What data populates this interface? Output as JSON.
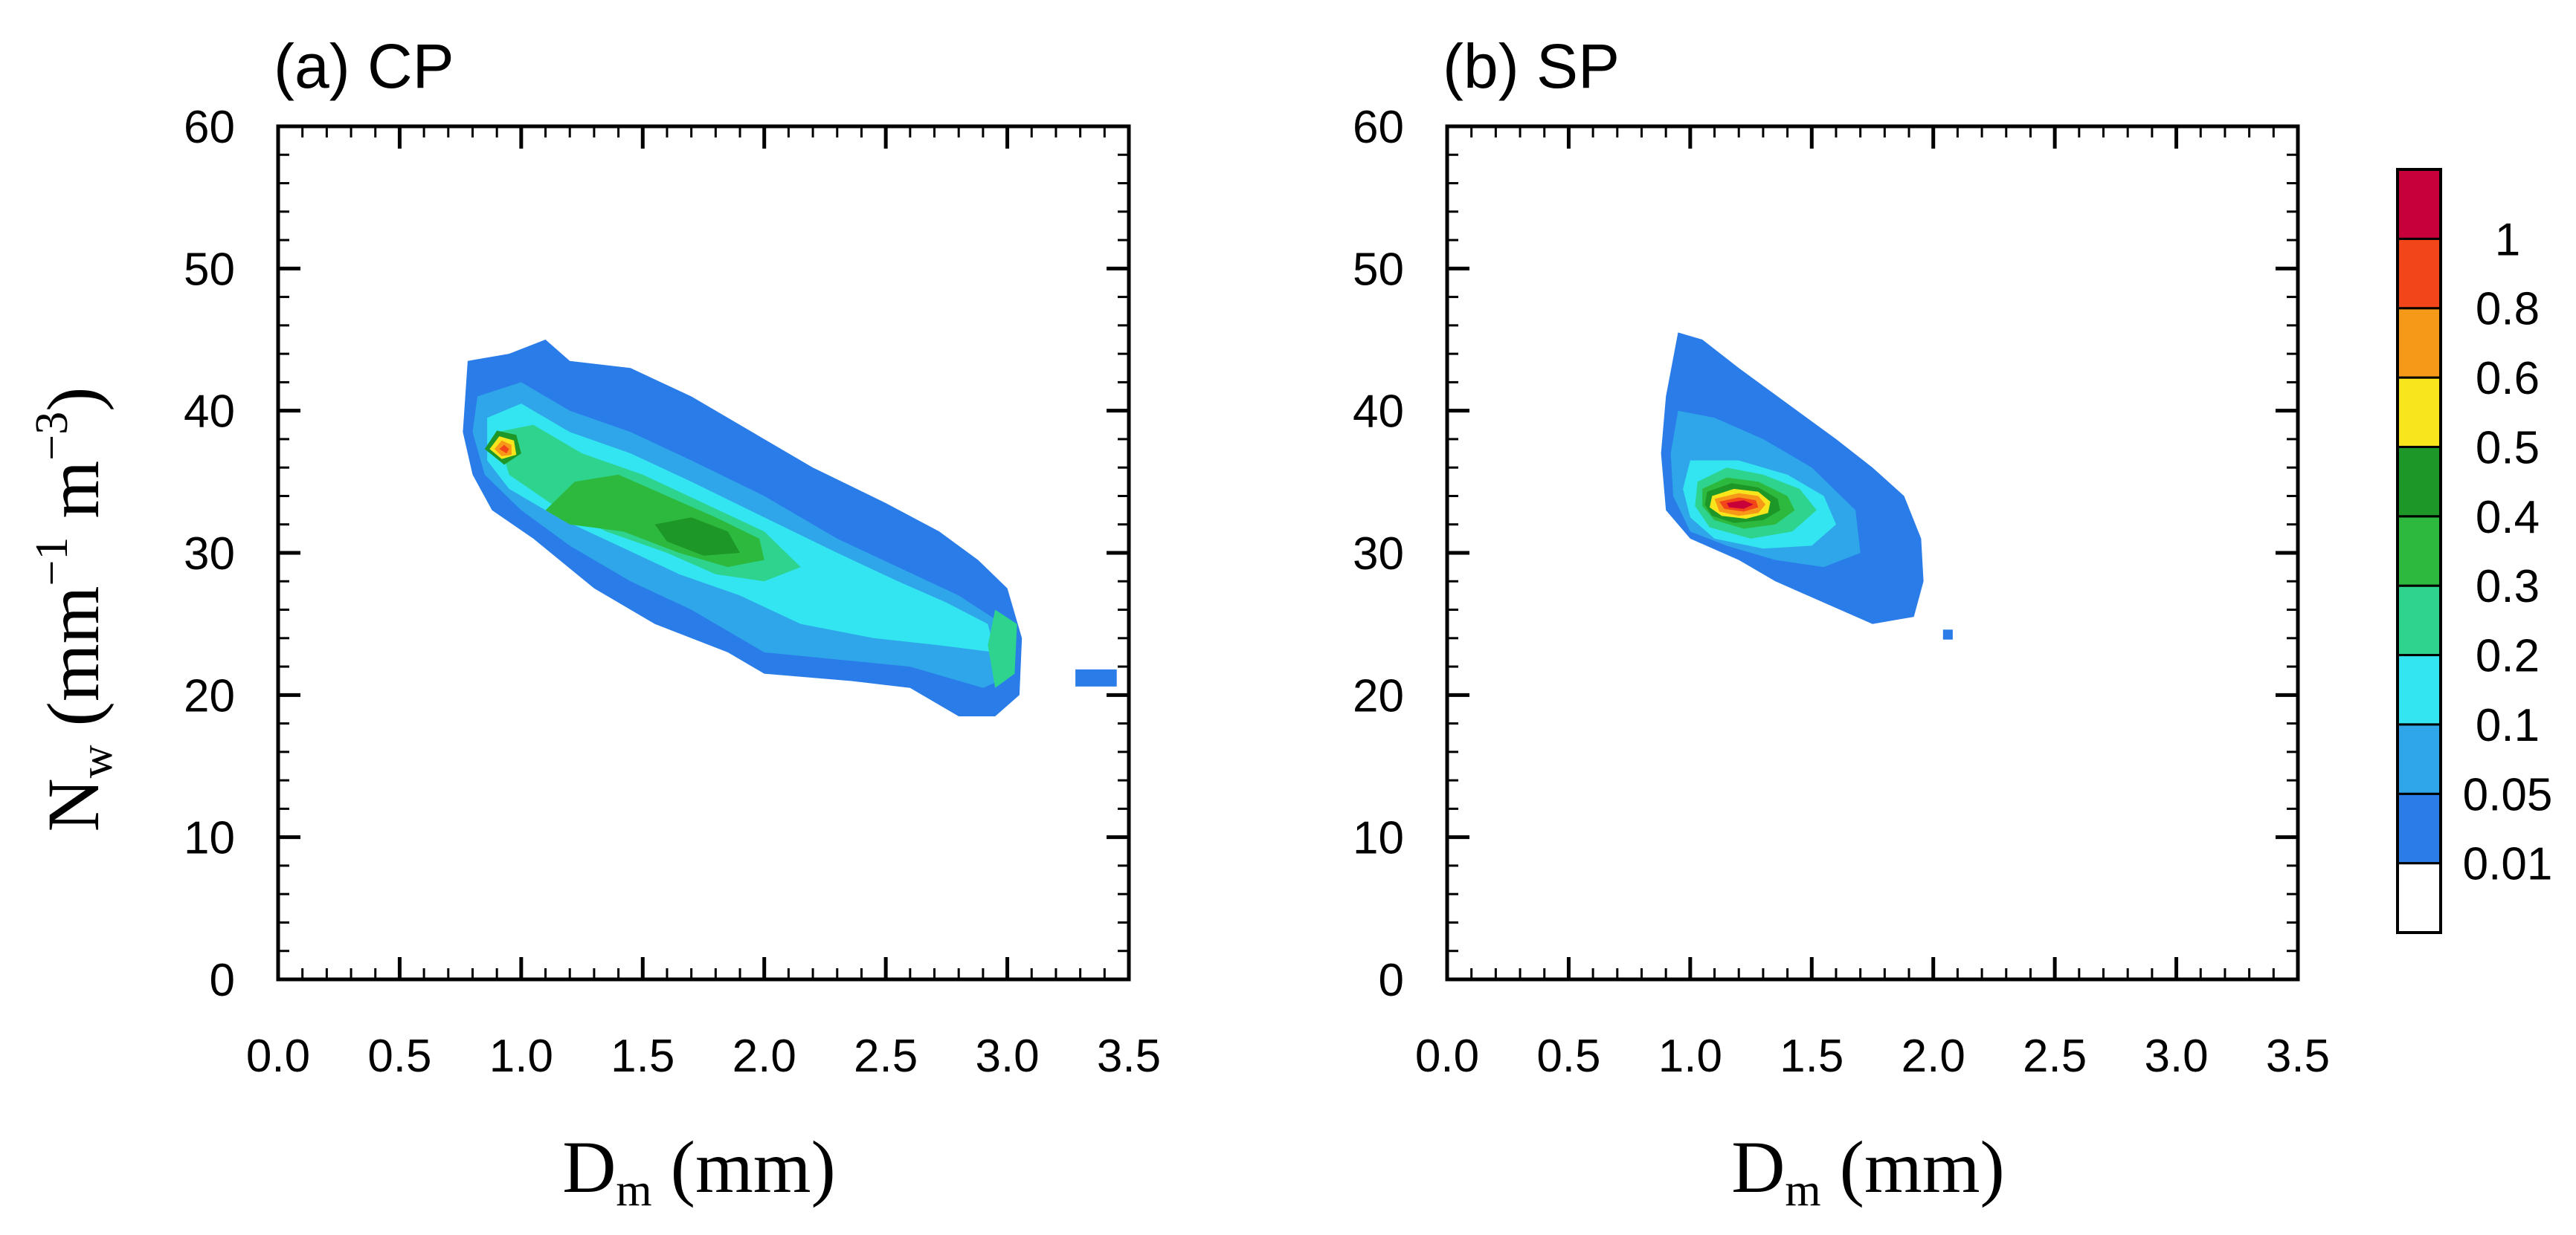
{
  "figure": {
    "ylabel": {
      "main": "N",
      "sub": "w",
      "rest": " (mm",
      "exp1": "−1",
      "mid": " m",
      "exp2": "−3",
      "close": ")"
    },
    "xlabel": {
      "main": "D",
      "sub": "m",
      "rest": " (mm)"
    }
  },
  "colorbar": {
    "labels": [
      "1",
      "0.8",
      "0.6",
      "0.5",
      "0.4",
      "0.3",
      "0.2",
      "0.1",
      "0.05",
      "0.01"
    ],
    "levels": [
      0,
      0.01,
      0.05,
      0.1,
      0.2,
      0.3,
      0.4,
      0.5,
      0.6,
      0.8,
      1,
      2
    ],
    "colors": [
      "#ffffff",
      "#2a7de9",
      "#2fa6ea",
      "#33e4f1",
      "#2ed38d",
      "#2cb93e",
      "#1d9727",
      "#f9e51c",
      "#f79918",
      "#f2461a",
      "#c8003a"
    ]
  },
  "chart_data": [
    {
      "type": "heatmap",
      "title": "(a) CP",
      "xlabel": "Dm (mm)",
      "ylabel": "Nw (mm−1 m−3)",
      "xlim": [
        0,
        3.5
      ],
      "ylim": [
        0,
        60
      ],
      "xticks": [
        "0.0",
        "0.5",
        "1.0",
        "1.5",
        "2.0",
        "2.5",
        "3.0",
        "3.5"
      ],
      "yticks": [
        "0",
        "10",
        "20",
        "30",
        "40",
        "50",
        "60"
      ],
      "regions": [
        {
          "level": 0.01,
          "polygon": [
            [
              0.78,
              43.5
            ],
            [
              0.95,
              44
            ],
            [
              1.1,
              45
            ],
            [
              1.2,
              43.5
            ],
            [
              1.45,
              43
            ],
            [
              1.7,
              41
            ],
            [
              1.95,
              38.5
            ],
            [
              2.2,
              36
            ],
            [
              2.5,
              33.5
            ],
            [
              2.72,
              31.5
            ],
            [
              2.88,
              29.5
            ],
            [
              3.0,
              27.5
            ],
            [
              3.06,
              24
            ],
            [
              3.05,
              20
            ],
            [
              2.95,
              18.5
            ],
            [
              2.8,
              18.5
            ],
            [
              2.6,
              20.5
            ],
            [
              2.35,
              21
            ],
            [
              2.0,
              21.5
            ],
            [
              1.85,
              23
            ],
            [
              1.55,
              25
            ],
            [
              1.3,
              27.5
            ],
            [
              1.05,
              31
            ],
            [
              0.88,
              33
            ],
            [
              0.8,
              35.5
            ],
            [
              0.76,
              38.5
            ]
          ]
        },
        {
          "level": 0.01,
          "polygon": [
            [
              3.28,
              21.8
            ],
            [
              3.45,
              21.8
            ],
            [
              3.45,
              20.6
            ],
            [
              3.28,
              20.6
            ]
          ]
        },
        {
          "level": 0.05,
          "polygon": [
            [
              0.82,
              41
            ],
            [
              1.0,
              42
            ],
            [
              1.2,
              40
            ],
            [
              1.45,
              38.5
            ],
            [
              1.7,
              36.5
            ],
            [
              2.0,
              34
            ],
            [
              2.3,
              31
            ],
            [
              2.55,
              29
            ],
            [
              2.8,
              27
            ],
            [
              2.98,
              25
            ],
            [
              3.03,
              21.5
            ],
            [
              2.9,
              20.5
            ],
            [
              2.6,
              22
            ],
            [
              2.3,
              22.5
            ],
            [
              2.0,
              23
            ],
            [
              1.7,
              26
            ],
            [
              1.45,
              28
            ],
            [
              1.2,
              30.5
            ],
            [
              1.0,
              33
            ],
            [
              0.85,
              35.5
            ],
            [
              0.8,
              38.5
            ]
          ]
        },
        {
          "level": 0.1,
          "polygon": [
            [
              0.86,
              39.5
            ],
            [
              1.0,
              40.5
            ],
            [
              1.2,
              38.5
            ],
            [
              1.45,
              37
            ],
            [
              1.7,
              35
            ],
            [
              2.0,
              32.5
            ],
            [
              2.3,
              30
            ],
            [
              2.55,
              28
            ],
            [
              2.75,
              26.5
            ],
            [
              2.92,
              25
            ],
            [
              2.95,
              23
            ],
            [
              2.72,
              23.5
            ],
            [
              2.45,
              24
            ],
            [
              2.15,
              25
            ],
            [
              1.9,
              27
            ],
            [
              1.65,
              28.5
            ],
            [
              1.4,
              30.5
            ],
            [
              1.15,
              32.5
            ],
            [
              0.95,
              34.5
            ],
            [
              0.86,
              36.5
            ]
          ]
        },
        {
          "level": 0.2,
          "polygon": [
            [
              0.9,
              38.5
            ],
            [
              1.05,
              39
            ],
            [
              1.25,
              37
            ],
            [
              1.5,
              35.5
            ],
            [
              1.75,
              33.5
            ],
            [
              2.0,
              31.5
            ],
            [
              2.15,
              29
            ],
            [
              2.0,
              28
            ],
            [
              1.8,
              28.5
            ],
            [
              1.6,
              30
            ],
            [
              1.35,
              31.5
            ],
            [
              1.12,
              33.5
            ],
            [
              0.95,
              35.5
            ]
          ]
        },
        {
          "level": 0.2,
          "polygon": [
            [
              2.95,
              26
            ],
            [
              3.04,
              25
            ],
            [
              3.03,
              21.5
            ],
            [
              2.95,
              20.5
            ],
            [
              2.92,
              23.5
            ]
          ]
        },
        {
          "level": 0.3,
          "polygon": [
            [
              1.1,
              33
            ],
            [
              1.22,
              35
            ],
            [
              1.4,
              35.5
            ],
            [
              1.6,
              34
            ],
            [
              1.8,
              32.5
            ],
            [
              1.98,
              31
            ],
            [
              2.0,
              29.5
            ],
            [
              1.85,
              29
            ],
            [
              1.65,
              30
            ],
            [
              1.42,
              31.5
            ],
            [
              1.2,
              32
            ]
          ]
        },
        {
          "level": 0.4,
          "polygon": [
            [
              1.55,
              32
            ],
            [
              1.7,
              32.5
            ],
            [
              1.85,
              31.5
            ],
            [
              1.9,
              30
            ],
            [
              1.75,
              29.8
            ],
            [
              1.6,
              30.8
            ]
          ]
        },
        {
          "level": 0.4,
          "polygon": [
            [
              0.85,
              37.3
            ],
            [
              0.9,
              38.6
            ],
            [
              0.98,
              38.3
            ],
            [
              1.0,
              37
            ],
            [
              0.93,
              36.2
            ]
          ]
        },
        {
          "level": 0.5,
          "polygon": [
            [
              0.87,
              37.3
            ],
            [
              0.91,
              38.2
            ],
            [
              0.97,
              37.9
            ],
            [
              0.98,
              36.9
            ],
            [
              0.92,
              36.6
            ]
          ]
        },
        {
          "level": 0.6,
          "polygon": [
            [
              0.89,
              37.3
            ],
            [
              0.92,
              37.9
            ],
            [
              0.96,
              37.6
            ],
            [
              0.96,
              36.9
            ],
            [
              0.92,
              36.8
            ]
          ]
        },
        {
          "level": 0.8,
          "polygon": [
            [
              0.91,
              37.3
            ],
            [
              0.93,
              37.6
            ],
            [
              0.95,
              37.3
            ],
            [
              0.94,
              37.0
            ]
          ]
        }
      ]
    },
    {
      "type": "heatmap",
      "title": "(b) SP",
      "xlabel": "Dm (mm)",
      "ylabel": "",
      "xlim": [
        0,
        3.5
      ],
      "ylim": [
        0,
        60
      ],
      "xticks": [
        "0.0",
        "0.5",
        "1.0",
        "1.5",
        "2.0",
        "2.5",
        "3.0",
        "3.5"
      ],
      "yticks": [
        "0",
        "10",
        "20",
        "30",
        "40",
        "50",
        "60"
      ],
      "regions": [
        {
          "level": 0.01,
          "polygon": [
            [
              0.95,
              45.5
            ],
            [
              1.05,
              45
            ],
            [
              1.2,
              43
            ],
            [
              1.4,
              40.5
            ],
            [
              1.6,
              38
            ],
            [
              1.75,
              36
            ],
            [
              1.88,
              34
            ],
            [
              1.95,
              31
            ],
            [
              1.96,
              28
            ],
            [
              1.92,
              25.5
            ],
            [
              1.75,
              25
            ],
            [
              1.55,
              26.5
            ],
            [
              1.35,
              28
            ],
            [
              1.2,
              29.5
            ],
            [
              1.0,
              31
            ],
            [
              0.9,
              33
            ],
            [
              0.88,
              37
            ],
            [
              0.9,
              41
            ]
          ]
        },
        {
          "level": 0.01,
          "polygon": [
            [
              2.04,
              24.6
            ],
            [
              2.08,
              24.6
            ],
            [
              2.08,
              23.9
            ],
            [
              2.04,
              23.9
            ]
          ]
        },
        {
          "level": 0.05,
          "polygon": [
            [
              0.95,
              40
            ],
            [
              1.1,
              39.5
            ],
            [
              1.3,
              38
            ],
            [
              1.5,
              36
            ],
            [
              1.68,
              33
            ],
            [
              1.7,
              30
            ],
            [
              1.55,
              29
            ],
            [
              1.35,
              29.5
            ],
            [
              1.15,
              30.5
            ],
            [
              1.0,
              31.5
            ],
            [
              0.93,
              34
            ],
            [
              0.92,
              37
            ]
          ]
        },
        {
          "level": 0.1,
          "polygon": [
            [
              1.0,
              36.5
            ],
            [
              1.2,
              36.5
            ],
            [
              1.4,
              35.5
            ],
            [
              1.55,
              34
            ],
            [
              1.6,
              32
            ],
            [
              1.5,
              30.5
            ],
            [
              1.3,
              30.3
            ],
            [
              1.1,
              31
            ],
            [
              1.0,
              32.5
            ],
            [
              0.97,
              34.5
            ]
          ]
        },
        {
          "level": 0.2,
          "polygon": [
            [
              1.03,
              35
            ],
            [
              1.15,
              36
            ],
            [
              1.3,
              35.5
            ],
            [
              1.45,
              34.5
            ],
            [
              1.52,
              33
            ],
            [
              1.42,
              31.5
            ],
            [
              1.25,
              31
            ],
            [
              1.08,
              31.8
            ],
            [
              1.02,
              33.3
            ]
          ]
        },
        {
          "level": 0.3,
          "polygon": [
            [
              1.05,
              34.5
            ],
            [
              1.15,
              35.3
            ],
            [
              1.28,
              35
            ],
            [
              1.4,
              34
            ],
            [
              1.43,
              33
            ],
            [
              1.35,
              32
            ],
            [
              1.22,
              31.7
            ],
            [
              1.1,
              32.3
            ],
            [
              1.05,
              33.3
            ]
          ]
        },
        {
          "level": 0.4,
          "polygon": [
            [
              1.07,
              34.3
            ],
            [
              1.17,
              34.9
            ],
            [
              1.28,
              34.6
            ],
            [
              1.36,
              33.8
            ],
            [
              1.37,
              33
            ],
            [
              1.3,
              32.3
            ],
            [
              1.18,
              32.1
            ],
            [
              1.09,
              32.6
            ],
            [
              1.06,
              33.4
            ]
          ]
        },
        {
          "level": 0.5,
          "polygon": [
            [
              1.09,
              34
            ],
            [
              1.18,
              34.5
            ],
            [
              1.28,
              34.3
            ],
            [
              1.33,
              33.6
            ],
            [
              1.32,
              32.8
            ],
            [
              1.23,
              32.4
            ],
            [
              1.13,
              32.6
            ],
            [
              1.08,
              33.2
            ]
          ]
        },
        {
          "level": 0.6,
          "polygon": [
            [
              1.1,
              33.8
            ],
            [
              1.2,
              34.2
            ],
            [
              1.28,
              34
            ],
            [
              1.31,
              33.4
            ],
            [
              1.28,
              32.8
            ],
            [
              1.2,
              32.6
            ],
            [
              1.12,
              32.9
            ]
          ]
        },
        {
          "level": 0.8,
          "polygon": [
            [
              1.12,
              33.6
            ],
            [
              1.2,
              33.9
            ],
            [
              1.27,
              33.7
            ],
            [
              1.28,
              33.2
            ],
            [
              1.22,
              32.9
            ],
            [
              1.14,
              33.1
            ]
          ]
        },
        {
          "level": 1,
          "polygon": [
            [
              1.15,
              33.5
            ],
            [
              1.22,
              33.7
            ],
            [
              1.26,
              33.4
            ],
            [
              1.22,
              33.1
            ],
            [
              1.16,
              33.2
            ]
          ]
        }
      ]
    }
  ]
}
